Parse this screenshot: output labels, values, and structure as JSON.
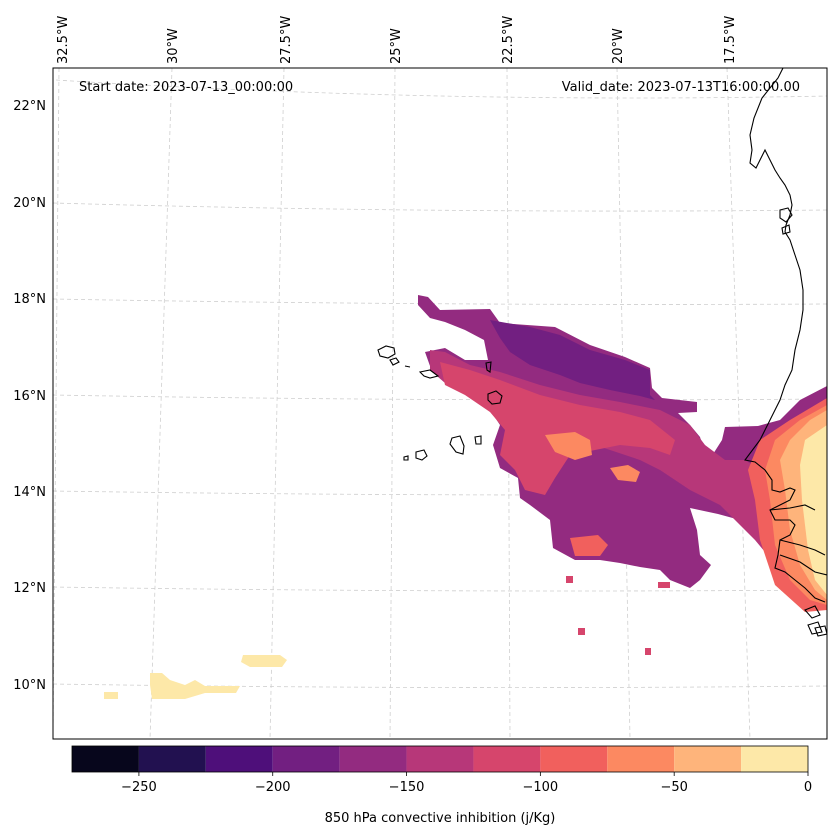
{
  "figure": {
    "start_date_text": "Start date: 2023-07-13_00:00:00",
    "valid_date_text": "Valid_date: 2023-07-13T16:00:00.00"
  },
  "longitude_ticks": [
    "32.5°W",
    "30°W",
    "27.5°W",
    "25°W",
    "22.5°W",
    "20°W",
    "17.5°W"
  ],
  "latitude_ticks": [
    "22°N",
    "20°N",
    "18°N",
    "16°N",
    "14°N",
    "12°N",
    "10°N"
  ],
  "colorbar": {
    "label": "850 hPa convective inhibition (j/Kg)",
    "tick_labels": [
      "−250",
      "−200",
      "−150",
      "−100",
      "−50",
      "0"
    ],
    "levels": [
      -275,
      -250,
      -225,
      -200,
      -175,
      -150,
      -125,
      -100,
      -75,
      -50,
      -25,
      0
    ],
    "colors": [
      "#07061c",
      "#221150",
      "#4e0f7a",
      "#721f81",
      "#932b80",
      "#b73779",
      "#d6456c",
      "#f1605d",
      "#fc8961",
      "#feb47b",
      "#fde8a8"
    ]
  },
  "chart_data": {
    "type": "heatmap",
    "variable": "850 hPa convective inhibition (j/Kg)",
    "value_range": [
      -275,
      0
    ],
    "lon_range_deg": [
      -33,
      -15.5
    ],
    "lat_range_deg": [
      9,
      22.5
    ],
    "grid": true,
    "colormap_levels": [
      -275,
      -250,
      -225,
      -200,
      -175,
      -150,
      -125,
      -100,
      -75,
      -50,
      -25,
      0
    ]
  }
}
